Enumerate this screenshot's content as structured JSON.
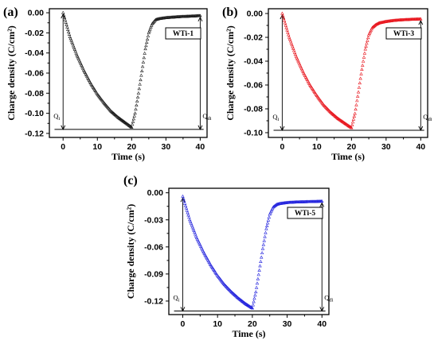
{
  "figure": {
    "panels": [
      "(a)",
      "(b)",
      "(c)"
    ]
  },
  "chart_data": [
    {
      "type": "scatter",
      "panel_label": "(a)",
      "legend": "WTi-1",
      "series_color": "#1a1a1a",
      "xlabel": "Time (s)",
      "ylabel": "Charge density (C/cm²)",
      "xlim": [
        -4,
        42
      ],
      "ylim": [
        -0.124,
        0.004
      ],
      "xticks": [
        0,
        10,
        20,
        30,
        40
      ],
      "yticks": [
        0.0,
        -0.02,
        -0.04,
        -0.06,
        -0.08,
        -0.1,
        -0.12
      ],
      "ytick_labels": [
        "0.00",
        "-0.02",
        "-0.04",
        "-0.06",
        "-0.08",
        "-0.10",
        "-0.12"
      ],
      "annotations": {
        "qi": "Q",
        "qi_sub": "i",
        "qdi": "Q",
        "qdi_sub": "di"
      },
      "baseline_y": -0.116,
      "series": [
        {
          "x": [
            0,
            2,
            4,
            6,
            8,
            10,
            12,
            14,
            16,
            18,
            20,
            21,
            22,
            23,
            24,
            25,
            26,
            27,
            28,
            30,
            32,
            34,
            36,
            38,
            40
          ],
          "y": [
            0,
            -0.024,
            -0.042,
            -0.057,
            -0.07,
            -0.081,
            -0.09,
            -0.098,
            -0.104,
            -0.109,
            -0.114,
            -0.1,
            -0.08,
            -0.058,
            -0.036,
            -0.02,
            -0.011,
            -0.007,
            -0.006,
            -0.005,
            -0.0045,
            -0.004,
            -0.0037,
            -0.0034,
            -0.003
          ]
        }
      ]
    },
    {
      "type": "scatter",
      "panel_label": "(b)",
      "legend": "WTi-3",
      "series_color": "#e8141c",
      "xlabel": "Time (s)",
      "ylabel": "Charge density (C/cm²)",
      "xlim": [
        -4,
        42
      ],
      "ylim": [
        -0.104,
        0.004
      ],
      "xticks": [
        0,
        10,
        20,
        30,
        40
      ],
      "yticks": [
        0.0,
        -0.02,
        -0.04,
        -0.06,
        -0.08,
        -0.1
      ],
      "ytick_labels": [
        "0.00",
        "-0.02",
        "-0.04",
        "-0.06",
        "-0.08",
        "-0.10"
      ],
      "annotations": {
        "qi": "Q",
        "qi_sub": "i",
        "qdi": "Q",
        "qdi_sub": "di"
      },
      "baseline_y": -0.098,
      "series": [
        {
          "x": [
            0,
            2,
            4,
            6,
            8,
            10,
            12,
            14,
            16,
            18,
            20,
            21,
            22,
            23,
            24,
            25,
            26,
            27,
            28,
            30,
            32,
            34,
            36,
            38,
            40
          ],
          "y": [
            0,
            -0.02,
            -0.036,
            -0.049,
            -0.06,
            -0.069,
            -0.077,
            -0.083,
            -0.088,
            -0.092,
            -0.096,
            -0.084,
            -0.066,
            -0.047,
            -0.03,
            -0.018,
            -0.012,
            -0.0095,
            -0.008,
            -0.0068,
            -0.006,
            -0.0055,
            -0.0052,
            -0.0049,
            -0.0047
          ]
        }
      ]
    },
    {
      "type": "scatter",
      "panel_label": "(c)",
      "legend": "WTi-5",
      "series_color": "#2222dd",
      "xlabel": "Time (s)",
      "ylabel": "Charge density (C/cm²)",
      "xlim": [
        -4,
        42
      ],
      "ylim": [
        -0.135,
        0.005
      ],
      "xticks": [
        0,
        10,
        20,
        30,
        40
      ],
      "yticks": [
        0.0,
        -0.03,
        -0.06,
        -0.09,
        -0.12
      ],
      "ytick_labels": [
        "0.00",
        "-0.03",
        "-0.06",
        "-0.09",
        "-0.12"
      ],
      "annotations": {
        "qi": "Q",
        "qi_sub": "i",
        "qdi": "Q",
        "qdi_sub": "di"
      },
      "baseline_y": -0.131,
      "series": [
        {
          "x": [
            0,
            2,
            4,
            6,
            8,
            10,
            12,
            14,
            16,
            18,
            20,
            21,
            22,
            23,
            24,
            25,
            26,
            27,
            28,
            30,
            32,
            34,
            36,
            38,
            40
          ],
          "y": [
            -0.004,
            -0.03,
            -0.05,
            -0.066,
            -0.08,
            -0.092,
            -0.102,
            -0.11,
            -0.117,
            -0.123,
            -0.128,
            -0.11,
            -0.086,
            -0.062,
            -0.04,
            -0.024,
            -0.016,
            -0.013,
            -0.012,
            -0.011,
            -0.0105,
            -0.0102,
            -0.01,
            -0.0098,
            -0.0095
          ]
        }
      ]
    }
  ]
}
